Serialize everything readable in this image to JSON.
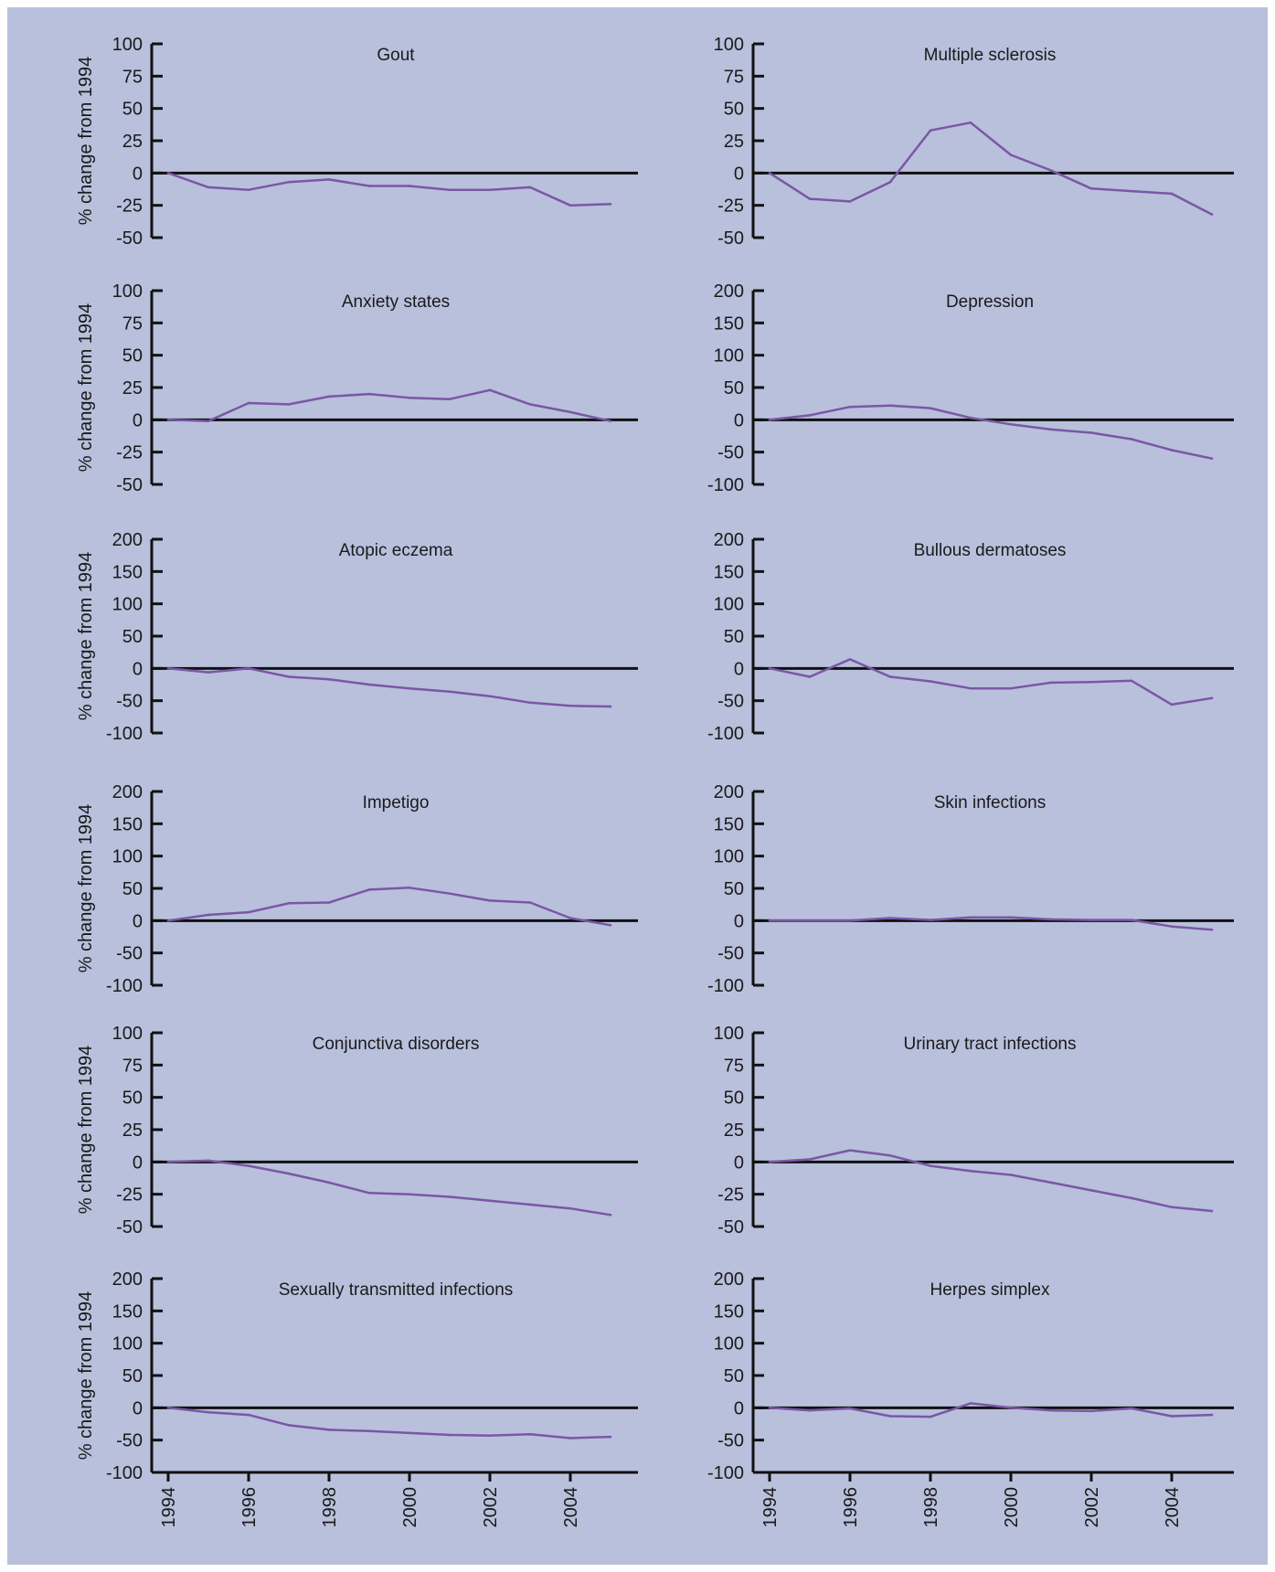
{
  "figure": {
    "background": "#b8c0dc",
    "line_color": "#7a57a4",
    "axis_color": "#111111"
  },
  "chart_data": [
    {
      "type": "line",
      "title": "Gout",
      "ylabel": "% change from 1994",
      "ylim": [
        -50,
        100
      ],
      "yticks": [
        100,
        75,
        50,
        25,
        0,
        -25,
        -50
      ],
      "x": [
        1994,
        1995,
        1996,
        1997,
        1998,
        1999,
        2000,
        2001,
        2002,
        2003,
        2004,
        2005
      ],
      "values": [
        0,
        -11,
        -13,
        -7,
        -5,
        -10,
        -10,
        -13,
        -13,
        -11,
        -25,
        -24
      ]
    },
    {
      "type": "line",
      "title": "Multiple sclerosis",
      "ylabel": "",
      "ylim": [
        -50,
        100
      ],
      "yticks": [
        100,
        75,
        50,
        25,
        0,
        -25,
        -50
      ],
      "x": [
        1994,
        1995,
        1996,
        1997,
        1998,
        1999,
        2000,
        2001,
        2002,
        2003,
        2004,
        2005
      ],
      "values": [
        0,
        -20,
        -22,
        -7,
        33,
        39,
        14,
        2,
        -12,
        -14,
        -16,
        -32
      ]
    },
    {
      "type": "line",
      "title": "Anxiety states",
      "ylabel": "% change from 1994",
      "ylim": [
        -50,
        100
      ],
      "yticks": [
        100,
        75,
        50,
        25,
        0,
        -25,
        -50
      ],
      "x": [
        1994,
        1995,
        1996,
        1997,
        1998,
        1999,
        2000,
        2001,
        2002,
        2003,
        2004,
        2005
      ],
      "values": [
        0,
        -1,
        13,
        12,
        18,
        20,
        17,
        16,
        23,
        12,
        6,
        -1
      ]
    },
    {
      "type": "line",
      "title": "Depression",
      "ylabel": "",
      "ylim": [
        -100,
        200
      ],
      "yticks": [
        200,
        150,
        100,
        50,
        0,
        -50,
        -100
      ],
      "x": [
        1994,
        1995,
        1996,
        1997,
        1998,
        1999,
        2000,
        2001,
        2002,
        2003,
        2004,
        2005
      ],
      "values": [
        0,
        7,
        20,
        22,
        18,
        3,
        -7,
        -15,
        -20,
        -30,
        -47,
        -60
      ]
    },
    {
      "type": "line",
      "title": "Atopic eczema",
      "ylabel": "% change from 1994",
      "ylim": [
        -100,
        200
      ],
      "yticks": [
        200,
        150,
        100,
        50,
        0,
        -50,
        -100
      ],
      "x": [
        1994,
        1995,
        1996,
        1997,
        1998,
        1999,
        2000,
        2001,
        2002,
        2003,
        2004,
        2005
      ],
      "values": [
        0,
        -6,
        0,
        -13,
        -17,
        -25,
        -31,
        -36,
        -43,
        -53,
        -58,
        -59
      ]
    },
    {
      "type": "line",
      "title": "Bullous dermatoses",
      "ylabel": "",
      "ylim": [
        -100,
        200
      ],
      "yticks": [
        200,
        150,
        100,
        50,
        0,
        -50,
        -100
      ],
      "x": [
        1994,
        1995,
        1996,
        1997,
        1998,
        1999,
        2000,
        2001,
        2002,
        2003,
        2004,
        2005
      ],
      "values": [
        0,
        -13,
        14,
        -13,
        -20,
        -31,
        -31,
        -22,
        -21,
        -19,
        -56,
        -46
      ]
    },
    {
      "type": "line",
      "title": "Impetigo",
      "ylabel": "% change from 1994",
      "ylim": [
        -100,
        200
      ],
      "yticks": [
        200,
        150,
        100,
        50,
        0,
        -50,
        -100
      ],
      "x": [
        1994,
        1995,
        1996,
        1997,
        1998,
        1999,
        2000,
        2001,
        2002,
        2003,
        2004,
        2005
      ],
      "values": [
        0,
        9,
        13,
        27,
        28,
        48,
        51,
        42,
        31,
        28,
        4,
        -7
      ]
    },
    {
      "type": "line",
      "title": "Skin infections",
      "ylabel": "",
      "ylim": [
        -100,
        200
      ],
      "yticks": [
        200,
        150,
        100,
        50,
        0,
        -50,
        -100
      ],
      "x": [
        1994,
        1995,
        1996,
        1997,
        1998,
        1999,
        2000,
        2001,
        2002,
        2003,
        2004,
        2005
      ],
      "values": [
        0,
        0,
        0,
        4,
        1,
        5,
        5,
        2,
        1,
        1,
        -9,
        -14
      ]
    },
    {
      "type": "line",
      "title": "Conjunctiva disorders",
      "ylabel": "% change from 1994",
      "ylim": [
        -50,
        100
      ],
      "yticks": [
        100,
        75,
        50,
        25,
        0,
        -25,
        -50
      ],
      "x": [
        1994,
        1995,
        1996,
        1997,
        1998,
        1999,
        2000,
        2001,
        2002,
        2003,
        2004,
        2005
      ],
      "values": [
        0,
        1,
        -3,
        -9,
        -16,
        -24,
        -25,
        -27,
        -30,
        -33,
        -36,
        -41
      ]
    },
    {
      "type": "line",
      "title": "Urinary tract infections",
      "ylabel": "",
      "ylim": [
        -50,
        100
      ],
      "yticks": [
        100,
        75,
        50,
        25,
        0,
        -25,
        -50
      ],
      "x": [
        1994,
        1995,
        1996,
        1997,
        1998,
        1999,
        2000,
        2001,
        2002,
        2003,
        2004,
        2005
      ],
      "values": [
        0,
        2,
        9,
        5,
        -3,
        -7,
        -10,
        -16,
        -22,
        -28,
        -35,
        -38
      ]
    },
    {
      "type": "line",
      "title": "Sexually transmitted infections",
      "ylabel": "% change from 1994",
      "ylim": [
        -100,
        200
      ],
      "yticks": [
        200,
        150,
        100,
        50,
        0,
        -50,
        -100
      ],
      "x": [
        1994,
        1995,
        1996,
        1997,
        1998,
        1999,
        2000,
        2001,
        2002,
        2003,
        2004,
        2005
      ],
      "values": [
        0,
        -7,
        -11,
        -27,
        -34,
        -36,
        -39,
        -42,
        -43,
        -41,
        -47,
        -45
      ],
      "xticks": [
        "1994",
        "1996",
        "1998",
        "2000",
        "2002",
        "2004"
      ]
    },
    {
      "type": "line",
      "title": "Herpes simplex",
      "ylabel": "",
      "ylim": [
        -100,
        200
      ],
      "yticks": [
        200,
        150,
        100,
        50,
        0,
        -50,
        -100
      ],
      "x": [
        1994,
        1995,
        1996,
        1997,
        1998,
        1999,
        2000,
        2001,
        2002,
        2003,
        2004,
        2005
      ],
      "values": [
        0,
        -4,
        -1,
        -13,
        -14,
        7,
        0,
        -4,
        -5,
        -1,
        -13,
        -11
      ],
      "xticks": [
        "1994",
        "1996",
        "1998",
        "2000",
        "2002",
        "2004"
      ]
    }
  ]
}
